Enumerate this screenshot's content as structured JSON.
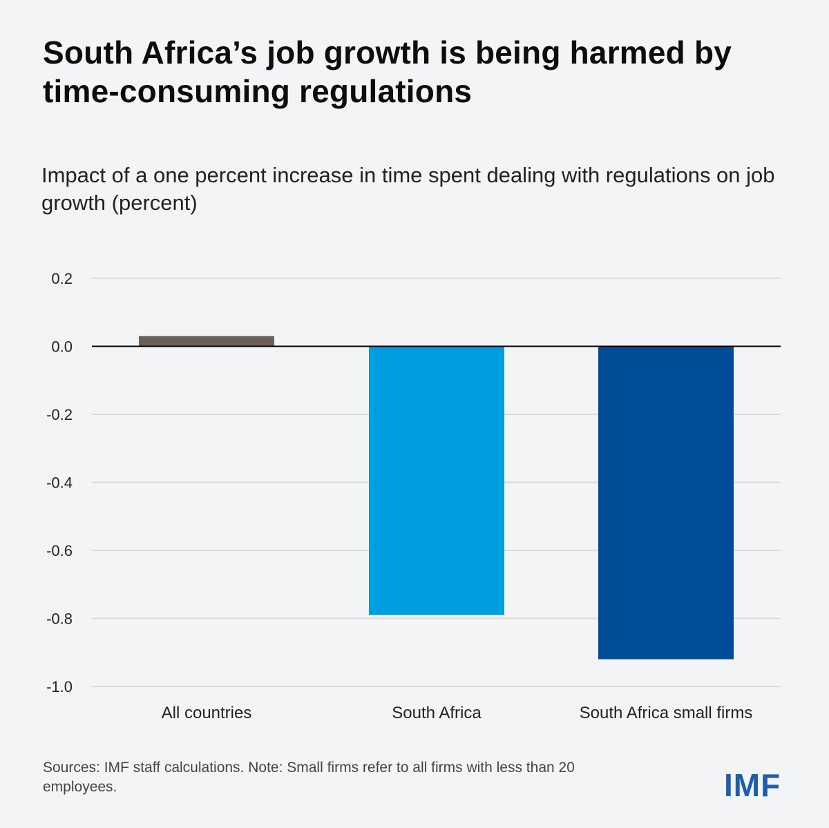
{
  "title": "South Africa’s job growth is being harmed by time-consuming regulations",
  "subtitle": "Impact of a one percent increase in time spent dealing with regulations on job growth (percent)",
  "footnote": "Sources: IMF staff calculations. Note: Small firms refer to all firms with less than 20 employees.",
  "logo": "IMF",
  "chart_data": {
    "type": "bar",
    "title": "Impact of a one percent increase in time spent dealing with regulations on job growth (percent)",
    "xlabel": "",
    "ylabel": "",
    "categories": [
      "All countries",
      "South Africa",
      "South Africa small firms"
    ],
    "values": [
      0.03,
      -0.79,
      -0.92
    ],
    "colors": [
      "#6b5f59",
      "#009ddf",
      "#004c97"
    ],
    "ylim": [
      -1.0,
      0.2
    ],
    "yticks": [
      0.2,
      0.0,
      -0.2,
      -0.4,
      -0.6,
      -0.8,
      -1.0
    ],
    "ytick_labels": [
      "0.2",
      "0.0",
      "-0.2",
      "-0.4",
      "-0.6",
      "-0.8",
      "-1.0"
    ],
    "grid": true,
    "gridline_color": "#d9dadc",
    "zero_line_color": "#000000"
  }
}
